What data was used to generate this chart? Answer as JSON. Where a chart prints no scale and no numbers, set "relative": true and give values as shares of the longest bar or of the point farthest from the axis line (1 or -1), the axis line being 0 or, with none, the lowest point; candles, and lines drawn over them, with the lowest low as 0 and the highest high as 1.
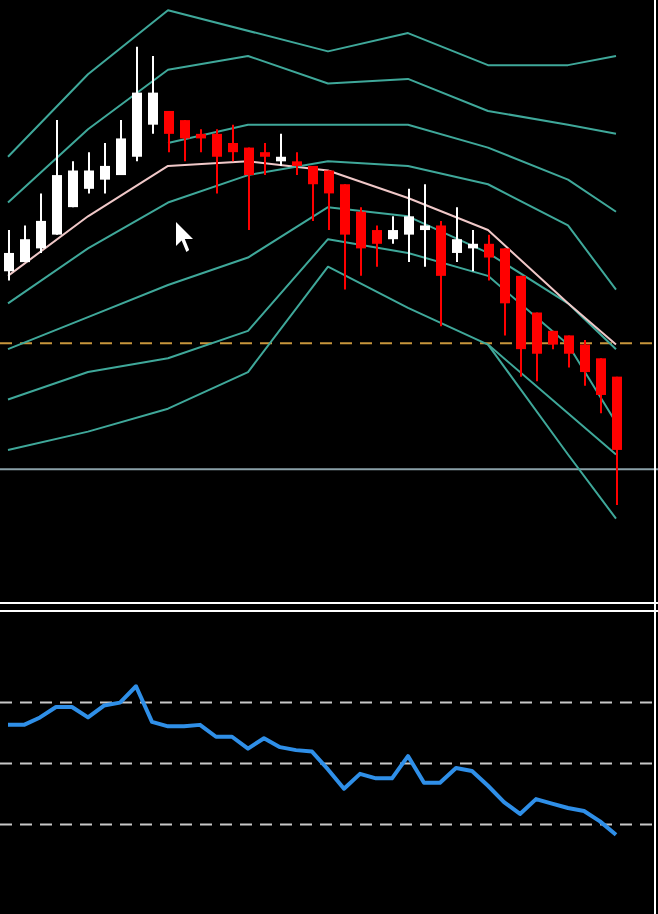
{
  "chart_data": [
    {
      "type": "candlestick",
      "relative": true,
      "tick_labels": false,
      "legend": false,
      "marker": "none",
      "categories": [
        null,
        null,
        null,
        null,
        null,
        null,
        null,
        null,
        null,
        null,
        null,
        null,
        null,
        null,
        null,
        null,
        null,
        null,
        null,
        null,
        null,
        null,
        null,
        null,
        null,
        null,
        null,
        null,
        null,
        null,
        null,
        null,
        null,
        null,
        null,
        null,
        null,
        null,
        null
      ],
      "ohlc": [
        [
          0.51,
          0.6,
          0.49,
          0.55
        ],
        [
          0.53,
          0.61,
          0.53,
          0.58
        ],
        [
          0.56,
          0.68,
          0.55,
          0.62
        ],
        [
          0.59,
          0.84,
          0.59,
          0.72
        ],
        [
          0.65,
          0.75,
          0.65,
          0.73
        ],
        [
          0.69,
          0.77,
          0.68,
          0.73
        ],
        [
          0.71,
          0.79,
          0.68,
          0.74
        ],
        [
          0.72,
          0.84,
          0.72,
          0.8
        ],
        [
          0.76,
          1,
          0.75,
          0.9
        ],
        [
          0.83,
          0.98,
          0.81,
          0.9
        ],
        [
          0.86,
          0.86,
          0.77,
          0.81
        ],
        [
          0.84,
          0.84,
          0.75,
          0.8
        ],
        [
          0.81,
          0.82,
          0.77,
          0.8
        ],
        [
          0.81,
          0.82,
          0.68,
          0.76
        ],
        [
          0.79,
          0.83,
          0.75,
          0.77
        ],
        [
          0.78,
          0.78,
          0.6,
          0.72
        ],
        [
          0.77,
          0.79,
          0.72,
          0.76
        ],
        [
          0.75,
          0.81,
          0.74,
          0.76
        ],
        [
          0.75,
          0.77,
          0.72,
          0.74
        ],
        [
          0.74,
          0.74,
          0.62,
          0.7
        ],
        [
          0.73,
          0.73,
          0.6,
          0.68
        ],
        [
          0.7,
          0.7,
          0.47,
          0.59
        ],
        [
          0.64,
          0.65,
          0.5,
          0.56
        ],
        [
          0.6,
          0.61,
          0.52,
          0.57
        ],
        [
          0.58,
          0.63,
          0.57,
          0.6
        ],
        [
          0.59,
          0.69,
          0.53,
          0.63
        ],
        [
          0.6,
          0.7,
          0.52,
          0.61
        ],
        [
          0.61,
          0.62,
          0.39,
          0.5
        ],
        [
          0.55,
          0.65,
          0.53,
          0.58
        ],
        [
          0.56,
          0.6,
          0.51,
          0.57
        ],
        [
          0.57,
          0.59,
          0.49,
          0.54
        ],
        [
          0.56,
          0.56,
          0.37,
          0.44
        ],
        [
          0.5,
          0.5,
          0.28,
          0.34
        ],
        [
          0.42,
          0.42,
          0.27,
          0.33
        ],
        [
          0.38,
          0.38,
          0.34,
          0.35
        ],
        [
          0.37,
          0.37,
          0.3,
          0.33
        ],
        [
          0.35,
          0.36,
          0.26,
          0.29
        ],
        [
          0.32,
          0.32,
          0.2,
          0.24
        ],
        [
          0.28,
          0.28,
          0,
          0.12
        ]
      ],
      "colors": [
        "#ffffff",
        "#ffffff",
        "#ffffff",
        "#ffffff",
        "#ffffff",
        "#ffffff",
        "#ffffff",
        "#ffffff",
        "#ffffff",
        "#ffffff",
        "#ff0000",
        "#ff0000",
        "#ff0000",
        "#ff0000",
        "#ff0000",
        "#ff0000",
        "#ff0000",
        "#ffffff",
        "#ff0000",
        "#ff0000",
        "#ff0000",
        "#ff0000",
        "#ff0000",
        "#ff0000",
        "#ffffff",
        "#ffffff",
        "#ffffff",
        "#ff0000",
        "#ffffff",
        "#ffffff",
        "#ff0000",
        "#ff0000",
        "#ff0000",
        "#ff0000",
        "#ff0000",
        "#ff0000",
        "#ff0000",
        "#ff0000",
        "#ff0000"
      ],
      "series": [
        {
          "type": "line",
          "color": "#3fa89a",
          "values": [
            0.76,
            null,
            null,
            null,
            null,
            0.94,
            null,
            null,
            null,
            null,
            1.08,
            null,
            null,
            null,
            null,
            null,
            null,
            null,
            null,
            null,
            0.99,
            null,
            null,
            null,
            null,
            1.03,
            null,
            null,
            null,
            null,
            0.96,
            null,
            null,
            null,
            null,
            0.96,
            null,
            null,
            0.98
          ]
        },
        {
          "type": "line",
          "color": "#3fa89a",
          "values": [
            0.66,
            null,
            null,
            null,
            null,
            0.82,
            null,
            null,
            null,
            null,
            0.95,
            null,
            null,
            null,
            null,
            0.98,
            null,
            null,
            null,
            null,
            0.92,
            null,
            null,
            null,
            null,
            0.93,
            null,
            null,
            null,
            null,
            0.86,
            null,
            null,
            null,
            null,
            0.83,
            null,
            null,
            0.81
          ]
        },
        {
          "type": "line",
          "color": "#3fa89a",
          "values": [
            null,
            null,
            null,
            null,
            null,
            null,
            null,
            null,
            null,
            null,
            0.79,
            null,
            null,
            null,
            null,
            0.83,
            null,
            null,
            null,
            null,
            0.83,
            null,
            null,
            null,
            null,
            0.83,
            null,
            null,
            null,
            null,
            0.78,
            null,
            null,
            null,
            null,
            0.71,
            null,
            null,
            0.64
          ]
        },
        {
          "type": "line",
          "color": "#3fa89a",
          "values": [
            0.44,
            null,
            null,
            null,
            null,
            0.56,
            null,
            null,
            null,
            null,
            0.66,
            null,
            null,
            null,
            null,
            0.72,
            null,
            null,
            null,
            null,
            0.75,
            null,
            null,
            null,
            null,
            0.74,
            null,
            null,
            null,
            null,
            0.7,
            null,
            null,
            null,
            null,
            0.61,
            null,
            null,
            0.47
          ]
        },
        {
          "type": "line",
          "color": "#f0c8c8",
          "values": [
            0.5,
            null,
            null,
            null,
            null,
            0.63,
            null,
            null,
            null,
            null,
            0.74,
            null,
            null,
            null,
            null,
            0.75,
            null,
            null,
            null,
            null,
            0.73,
            null,
            null,
            null,
            null,
            0.67,
            null,
            null,
            null,
            null,
            0.6,
            null,
            null,
            null,
            null,
            0.44,
            null,
            null,
            0.35
          ]
        },
        {
          "type": "line",
          "color": "#3fa89a",
          "values": [
            0.34,
            null,
            null,
            null,
            null,
            0.41,
            null,
            null,
            null,
            null,
            0.48,
            null,
            null,
            null,
            null,
            0.54,
            null,
            null,
            null,
            null,
            0.65,
            null,
            null,
            null,
            null,
            0.63,
            null,
            null,
            null,
            null,
            0.55,
            null,
            null,
            null,
            null,
            0.44,
            null,
            null,
            0.34
          ]
        },
        {
          "type": "line",
          "color": "#3fa89a",
          "values": [
            0.23,
            null,
            null,
            null,
            null,
            0.29,
            null,
            null,
            null,
            null,
            0.32,
            null,
            null,
            null,
            null,
            0.38,
            null,
            null,
            null,
            null,
            0.58,
            null,
            null,
            null,
            null,
            0.55,
            null,
            null,
            null,
            null,
            0.5,
            null,
            null,
            null,
            null,
            0.35,
            null,
            null,
            0.18
          ]
        },
        {
          "type": "line",
          "color": "#3fa89a",
          "values": [
            0.12,
            null,
            null,
            null,
            null,
            0.16,
            null,
            null,
            null,
            null,
            0.21,
            null,
            null,
            null,
            null,
            0.29,
            null,
            null,
            null,
            null,
            0.52,
            null,
            null,
            null,
            null,
            0.43,
            null,
            null,
            null,
            null,
            0.35,
            null,
            null,
            null,
            null,
            0.2,
            null,
            null,
            0.11
          ]
        },
        {
          "type": "line",
          "color": "#3fa89a",
          "values": [
            null,
            null,
            null,
            null,
            null,
            null,
            null,
            null,
            null,
            null,
            null,
            null,
            null,
            null,
            null,
            null,
            null,
            null,
            null,
            null,
            null,
            null,
            null,
            null,
            null,
            null,
            null,
            null,
            null,
            null,
            0.35,
            null,
            null,
            null,
            null,
            0.11,
            null,
            null,
            -0.03
          ]
        }
      ],
      "ref_lines": [
        {
          "axis": "y",
          "value": 0.353,
          "color": "#c8963c",
          "line_style": "dashed"
        },
        {
          "axis": "y",
          "value": 0.078,
          "color": "#8aa0a8",
          "line_style": "solid"
        }
      ]
    },
    {
      "type": "line",
      "relative": true,
      "tick_labels": false,
      "legend": false,
      "marker": "none",
      "categories": [
        null,
        null,
        null,
        null,
        null,
        null,
        null,
        null,
        null,
        null,
        null,
        null,
        null,
        null,
        null,
        null,
        null,
        null,
        null,
        null,
        null,
        null,
        null,
        null,
        null,
        null,
        null,
        null,
        null,
        null,
        null,
        null,
        null,
        null,
        null,
        null,
        null,
        null,
        null
      ],
      "series": [
        {
          "color": "#2f8fe8",
          "values": [
            0.74,
            0.74,
            0.79,
            0.86,
            0.86,
            0.79,
            0.87,
            0.89,
            1,
            0.76,
            0.73,
            0.73,
            0.74,
            0.66,
            0.66,
            0.58,
            0.65,
            0.59,
            0.57,
            0.56,
            0.44,
            0.31,
            0.41,
            0.38,
            0.38,
            0.53,
            0.35,
            0.35,
            0.45,
            0.43,
            0.33,
            0.22,
            0.14,
            0.24,
            0.21,
            0.18,
            0.16,
            0.09,
            0
          ]
        }
      ],
      "ref_lines": [
        {
          "axis": "y",
          "value": 0.89,
          "color": "#c8c8c8",
          "line_style": "dashed"
        },
        {
          "axis": "y",
          "value": 0.48,
          "color": "#c8c8c8",
          "line_style": "dashed"
        },
        {
          "axis": "y",
          "value": 0.07,
          "color": "#c8c8c8",
          "line_style": "dashed"
        }
      ]
    }
  ]
}
